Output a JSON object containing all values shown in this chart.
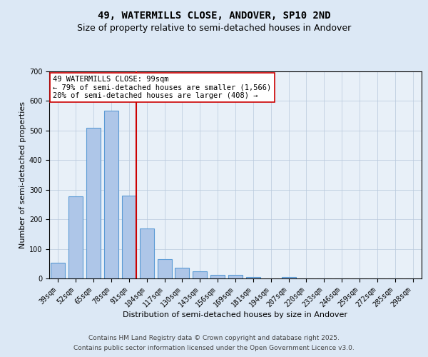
{
  "title": "49, WATERMILLS CLOSE, ANDOVER, SP10 2ND",
  "subtitle": "Size of property relative to semi-detached houses in Andover",
  "xlabel": "Distribution of semi-detached houses by size in Andover",
  "ylabel": "Number of semi-detached properties",
  "bar_labels": [
    "39sqm",
    "52sqm",
    "65sqm",
    "78sqm",
    "91sqm",
    "104sqm",
    "117sqm",
    "130sqm",
    "143sqm",
    "156sqm",
    "169sqm",
    "181sqm",
    "194sqm",
    "207sqm",
    "220sqm",
    "233sqm",
    "246sqm",
    "259sqm",
    "272sqm",
    "285sqm",
    "298sqm"
  ],
  "bar_values": [
    53,
    277,
    510,
    567,
    281,
    169,
    66,
    36,
    24,
    11,
    11,
    5,
    0,
    5,
    0,
    0,
    0,
    0,
    0,
    0,
    0
  ],
  "bar_color": "#aec6e8",
  "bar_edge_color": "#5b9bd5",
  "vertical_line_color": "#cc0000",
  "annotation_text": "49 WATERMILLS CLOSE: 99sqm\n← 79% of semi-detached houses are smaller (1,566)\n20% of semi-detached houses are larger (408) →",
  "annotation_box_color": "#ffffff",
  "annotation_box_edge": "#cc0000",
  "ylim": [
    0,
    700
  ],
  "yticks": [
    0,
    100,
    200,
    300,
    400,
    500,
    600,
    700
  ],
  "footer1": "Contains HM Land Registry data © Crown copyright and database right 2025.",
  "footer2": "Contains public sector information licensed under the Open Government Licence v3.0.",
  "bg_color": "#dce8f5",
  "plot_bg_color": "#e8f0f8",
  "grid_color": "#b8c8dc",
  "title_fontsize": 10,
  "subtitle_fontsize": 9,
  "axis_label_fontsize": 8,
  "tick_fontsize": 7,
  "annotation_fontsize": 7.5,
  "footer_fontsize": 6.5
}
